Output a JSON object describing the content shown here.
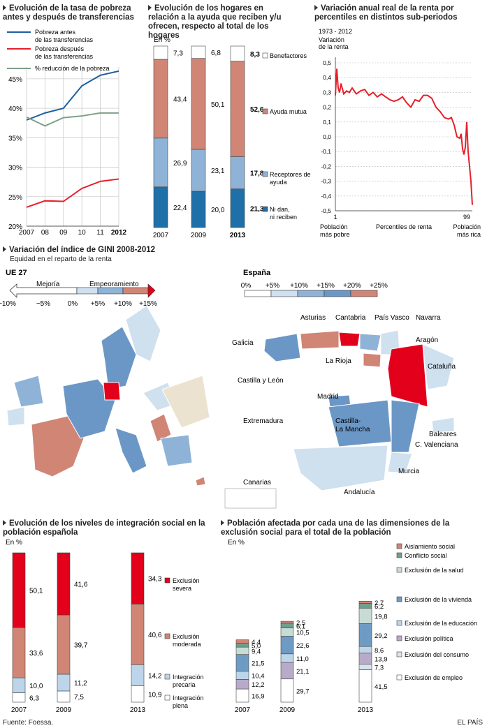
{
  "colors": {
    "poverty_before": "#1d5fa0",
    "poverty_after": "#e5202a",
    "reduction": "#7fa08a",
    "benef": "#ffffff",
    "mutual": "#d08575",
    "recipients": "#8fb3d6",
    "neither": "#1f6fa8",
    "severa": "#e2001a",
    "moderada": "#d08575",
    "precaria": "#bdd5ea",
    "plena": "#ffffff"
  },
  "chart_data": [
    {
      "id": "poverty",
      "type": "line",
      "title": "Evolución de la tasa de pobreza antes y después de transferencias",
      "x": [
        "2007",
        "08",
        "09",
        "10",
        "11",
        "2012"
      ],
      "yticks": [
        "45%",
        "40%",
        "35%",
        "30%",
        "25%",
        "20%"
      ],
      "ylim": [
        20,
        47
      ],
      "series": [
        {
          "name": "Pobreza antes de las transferencias",
          "values": [
            38.0,
            39.2,
            40.0,
            43.8,
            45.6,
            46.3
          ]
        },
        {
          "name": "Pobreza después de las transferencias",
          "values": [
            23.2,
            24.3,
            24.2,
            26.4,
            27.6,
            28.0
          ]
        },
        {
          "name": "% reducción de la pobreza",
          "values": [
            38.5,
            37.0,
            38.4,
            38.7,
            39.2,
            39.2
          ]
        }
      ]
    },
    {
      "id": "households",
      "type": "bar",
      "title": "Evolución de los hogares en relación a la ayuda que reciben y/u ofrecen, respecto al total de los hogares",
      "unit": "En %",
      "categories": [
        "2007",
        "2009",
        "2013"
      ],
      "series": [
        {
          "name": "Ni dan, ni reciben",
          "values": [
            22.4,
            20.0,
            21.3
          ]
        },
        {
          "name": "Receptores de ayuda",
          "values": [
            26.9,
            23.1,
            17.8
          ]
        },
        {
          "name": "Ayuda mutua",
          "values": [
            43.4,
            50.1,
            52.6
          ]
        },
        {
          "name": "Benefactores",
          "values": [
            7.3,
            6.8,
            8.3
          ]
        }
      ]
    },
    {
      "id": "income",
      "type": "line",
      "title": "Variación anual real de la renta por percentiles en distintos sub-periodos",
      "subtitle": "1973 - 2012",
      "ylabel": "Variación de la renta",
      "xlabel": "Percentiles de renta",
      "x_start": "1",
      "x_end": "99",
      "x_left_note": "Población más pobre",
      "x_right_note": "Población más rica",
      "yticks": [
        "0,5",
        "0,4",
        "0,3",
        "0,2",
        "0,1",
        "0,0",
        "-0,1",
        "-0,2",
        "-0,3",
        "-0,4",
        "-0,5"
      ],
      "ylim": [
        -0.5,
        0.5
      ],
      "series": [
        {
          "name": "",
          "x": [
            1,
            2,
            3,
            4,
            5,
            7,
            9,
            11,
            13,
            16,
            19,
            22,
            25,
            28,
            31,
            34,
            37,
            40,
            43,
            46,
            49,
            52,
            55,
            58,
            61,
            64,
            67,
            70,
            73,
            76,
            79,
            82,
            84,
            86,
            88,
            90,
            91,
            92,
            93,
            94,
            95,
            96,
            97,
            98,
            99
          ],
          "values": [
            0.28,
            0.46,
            0.33,
            0.3,
            0.36,
            0.29,
            0.31,
            0.3,
            0.33,
            0.29,
            0.31,
            0.32,
            0.28,
            0.3,
            0.27,
            0.29,
            0.27,
            0.25,
            0.24,
            0.25,
            0.27,
            0.23,
            0.2,
            0.25,
            0.24,
            0.28,
            0.28,
            0.26,
            0.2,
            0.17,
            0.13,
            0.12,
            0.13,
            0.08,
            0.0,
            -0.01,
            0.02,
            -0.08,
            -0.12,
            -0.07,
            0.1,
            -0.1,
            -0.2,
            -0.3,
            -0.46
          ]
        }
      ]
    },
    {
      "id": "integration",
      "type": "bar",
      "title": "Evolución de los niveles de integración social en la población española",
      "unit": "En %",
      "categories": [
        "2007",
        "2009",
        "2013"
      ],
      "series": [
        {
          "name": "Integración plena",
          "values": [
            6.3,
            7.5,
            10.9
          ]
        },
        {
          "name": "Integración precaria",
          "values": [
            10.0,
            11.2,
            14.2
          ]
        },
        {
          "name": "Exclusión moderada",
          "values": [
            33.6,
            39.7,
            40.6
          ]
        },
        {
          "name": "Exclusión severa",
          "values": [
            50.1,
            41.6,
            34.3
          ]
        }
      ]
    },
    {
      "id": "dimensions",
      "type": "bar",
      "title": "Población afectada por cada una de las dimensiones de la exclusión social para el total de la población",
      "unit": "En %",
      "categories": [
        "2007",
        "2009",
        "2013"
      ],
      "series": [
        {
          "name": "Exclusión de empleo",
          "values": [
            16.9,
            29.7,
            41.5
          ]
        },
        {
          "name": "Exclusión del consumo",
          "values": [
            null,
            null,
            7.3
          ]
        },
        {
          "name": "Exclusión política",
          "values": [
            12.2,
            21.1,
            13.9
          ]
        },
        {
          "name": "Exclusión de la educación",
          "values": [
            10.4,
            11.0,
            8.6
          ]
        },
        {
          "name": "Exclusión de la vivienda",
          "values": [
            21.5,
            22.6,
            29.2
          ]
        },
        {
          "name": "Exclusión de la salud",
          "values": [
            9.4,
            10.5,
            19.8
          ]
        },
        {
          "name": "Conflicto social",
          "values": [
            5.0,
            6.1,
            6.2
          ]
        },
        {
          "name": "Aislamiento social",
          "values": [
            4.4,
            2.5,
            2.7
          ]
        }
      ]
    }
  ],
  "gini": {
    "title": "Variación del índice de GINI 2008-2012",
    "subtitle": "Equidad en el reparto de la renta",
    "eu": {
      "label": "UE 27",
      "mejoria": "Mejoría",
      "empeoramiento": "Empeoramiento",
      "ticks": [
        "−10%",
        "−5%",
        "0%",
        "+5%",
        "+10%",
        "+15%"
      ]
    },
    "spain": {
      "label": "España",
      "ticks": [
        "0%",
        "+5%",
        "+10%",
        "+15%",
        "+20%",
        "+25%"
      ],
      "regions": [
        "Asturias",
        "Cantabria",
        "País Vasco",
        "Navarra",
        "Galicia",
        "Aragón",
        "La Rioja",
        "Cataluña",
        "Castilla y León",
        "Madrid",
        "Extremadura",
        "Castilla-",
        "La Mancha",
        "Baleares",
        "C. Valenciana",
        "Murcia",
        "Andalucía",
        "Canarias"
      ]
    },
    "scale_colors": [
      "#ffffff",
      "#cfe0ef",
      "#8fb3d6",
      "#6b97c6",
      "#d08575",
      "#e2001a"
    ]
  },
  "footer": {
    "source": "Fuente: Foessa.",
    "brand": "EL PAÍS"
  }
}
